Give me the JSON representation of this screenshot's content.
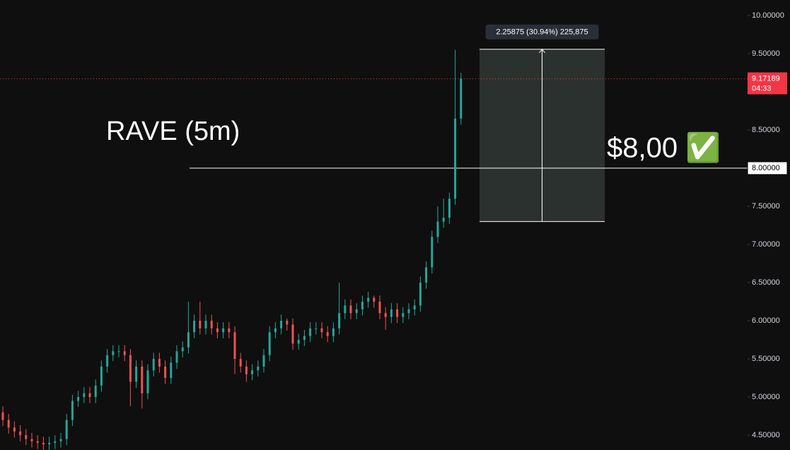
{
  "chart_data": {
    "type": "candlestick",
    "title": "RAVE (5m)",
    "annotation": "$8,00 ✅",
    "up_color": "#26a69a",
    "down_color": "#ef5350",
    "open": [
      4.8,
      4.7,
      4.6,
      4.55,
      4.5,
      4.45,
      4.42,
      4.4,
      4.38,
      4.4,
      4.42,
      4.45,
      4.7,
      4.95,
      5.0,
      5.05,
      5.0,
      5.15,
      5.4,
      5.55,
      5.6,
      5.6,
      5.55,
      5.2,
      5.4,
      5.05,
      5.35,
      5.5,
      5.4,
      5.25,
      5.45,
      5.6,
      5.65,
      5.85,
      6.0,
      5.9,
      6.0,
      5.9,
      5.85,
      5.9,
      5.85,
      5.5,
      5.4,
      5.3,
      5.35,
      5.4,
      5.55,
      5.85,
      5.9,
      6.0,
      5.95,
      5.7,
      5.75,
      5.8,
      5.9,
      5.9,
      5.85,
      5.8,
      5.9,
      6.1,
      6.2,
      6.1,
      6.15,
      6.25,
      6.3,
      6.25,
      6.1,
      6.05,
      6.15,
      6.05,
      6.1,
      6.15,
      6.2,
      6.5,
      6.7,
      7.1,
      7.3,
      7.35,
      7.6,
      8.65
    ],
    "high": [
      4.88,
      4.78,
      4.68,
      4.63,
      4.58,
      4.53,
      4.5,
      4.48,
      4.48,
      4.5,
      4.53,
      4.78,
      5.03,
      5.08,
      5.13,
      5.13,
      5.23,
      5.48,
      5.63,
      5.68,
      5.68,
      5.68,
      5.63,
      5.48,
      5.48,
      5.43,
      5.58,
      5.58,
      5.48,
      5.53,
      5.68,
      5.73,
      6.25,
      6.08,
      6.25,
      6.08,
      6.08,
      5.98,
      5.98,
      5.98,
      5.93,
      5.58,
      5.48,
      5.43,
      5.48,
      5.63,
      5.93,
      5.98,
      6.08,
      6.03,
      6.03,
      5.83,
      5.88,
      5.98,
      5.98,
      5.98,
      5.93,
      5.98,
      6.5,
      6.28,
      6.28,
      6.23,
      6.33,
      6.38,
      6.33,
      6.33,
      6.18,
      6.23,
      6.23,
      6.18,
      6.23,
      6.28,
      6.58,
      6.78,
      7.18,
      7.5,
      7.6,
      7.68,
      9.55,
      9.25
    ],
    "low": [
      4.62,
      4.52,
      4.47,
      4.42,
      4.37,
      4.34,
      4.32,
      4.3,
      4.3,
      4.32,
      4.34,
      4.37,
      4.62,
      4.87,
      4.92,
      4.92,
      4.92,
      5.07,
      5.32,
      5.47,
      5.52,
      5.47,
      4.88,
      5.12,
      4.85,
      4.97,
      5.27,
      5.32,
      5.17,
      5.17,
      5.37,
      5.52,
      5.57,
      5.77,
      5.82,
      5.82,
      5.82,
      5.77,
      5.77,
      5.77,
      5.3,
      5.32,
      5.2,
      5.22,
      5.27,
      5.32,
      5.47,
      5.77,
      5.82,
      5.87,
      5.62,
      5.62,
      5.67,
      5.72,
      5.82,
      5.77,
      5.72,
      5.72,
      5.82,
      6.02,
      6.02,
      6.02,
      6.07,
      6.17,
      6.17,
      6.02,
      5.88,
      5.97,
      5.97,
      5.97,
      6.02,
      6.07,
      6.12,
      6.42,
      6.62,
      7.02,
      7.22,
      7.27,
      7.52,
      8.57
    ],
    "close": [
      4.7,
      4.6,
      4.55,
      4.5,
      4.45,
      4.42,
      4.4,
      4.38,
      4.4,
      4.42,
      4.45,
      4.7,
      4.95,
      5.0,
      5.05,
      5.0,
      5.15,
      5.4,
      5.55,
      5.6,
      5.6,
      5.55,
      5.2,
      5.4,
      5.05,
      5.35,
      5.5,
      5.4,
      5.25,
      5.45,
      5.6,
      5.65,
      5.85,
      6.0,
      5.9,
      6.0,
      5.9,
      5.85,
      5.9,
      5.85,
      5.5,
      5.4,
      5.3,
      5.35,
      5.4,
      5.55,
      5.85,
      5.9,
      6.0,
      5.95,
      5.7,
      5.75,
      5.8,
      5.9,
      5.9,
      5.85,
      5.8,
      5.9,
      6.1,
      6.2,
      6.1,
      6.15,
      6.25,
      6.3,
      6.25,
      6.1,
      6.05,
      6.15,
      6.05,
      6.1,
      6.15,
      6.2,
      6.5,
      6.7,
      7.1,
      7.3,
      7.35,
      7.6,
      8.65,
      9.17189
    ],
    "ylim": [
      4.306,
      10.204
    ],
    "yticks": [
      {
        "value": 4.5,
        "label": "4.50000"
      },
      {
        "value": 5.0,
        "label": "5.00000"
      },
      {
        "value": 5.5,
        "label": "5.50000"
      },
      {
        "value": 6.0,
        "label": "6.00000"
      },
      {
        "value": 6.5,
        "label": "6.50000"
      },
      {
        "value": 7.0,
        "label": "7.00000"
      },
      {
        "value": 7.5,
        "label": "7.50000"
      },
      {
        "value": 8.5,
        "label": "8.50000"
      },
      {
        "value": 9.5,
        "label": "9.50000"
      },
      {
        "value": 10.0,
        "label": "10.00000"
      }
    ],
    "horizontal_line": {
      "value": 8.0,
      "label": "8.00000"
    },
    "last_price": {
      "value": 9.17189,
      "label": "9.17189",
      "countdown": "04:33",
      "color": "#f23645"
    },
    "measure": {
      "low": 7.3,
      "high": 9.55875,
      "label": "2.25875 (30.94%) 225,875"
    }
  }
}
